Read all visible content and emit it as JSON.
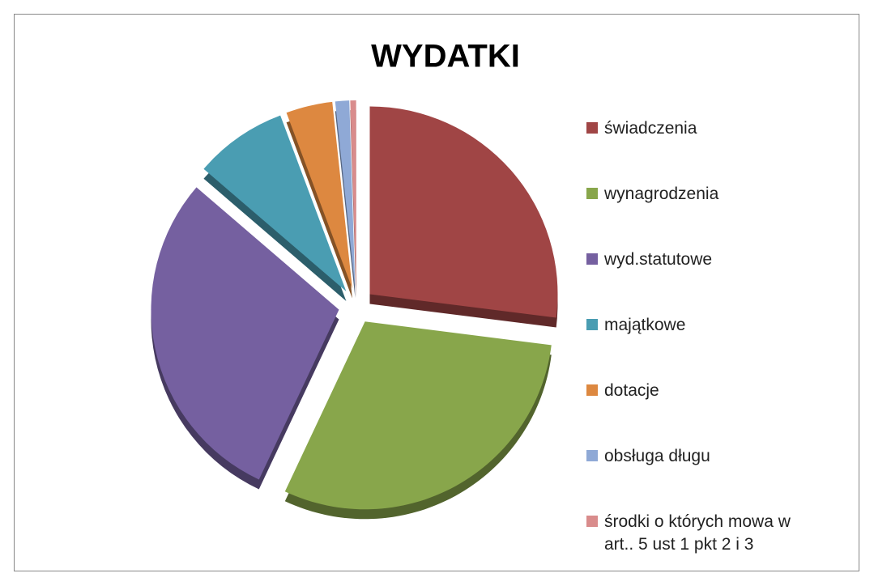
{
  "chart_data": {
    "type": "pie",
    "title": "WYDATKI",
    "categories": [
      "świadczenia",
      "wynagrodzenia",
      "wyd.statutowe",
      "majątkowe",
      "dotacje",
      "obsługa długu",
      "środki o których mowa w art.. 5 ust 1 pkt 2 i 3"
    ],
    "values": [
      27,
      30,
      29.3,
      8,
      4,
      1.2,
      0.5
    ],
    "colors": [
      "#a04545",
      "#88a64b",
      "#7560a0",
      "#4a9db2",
      "#dd8840",
      "#8fa9d6",
      "#d98c8c"
    ],
    "legend": "right"
  }
}
